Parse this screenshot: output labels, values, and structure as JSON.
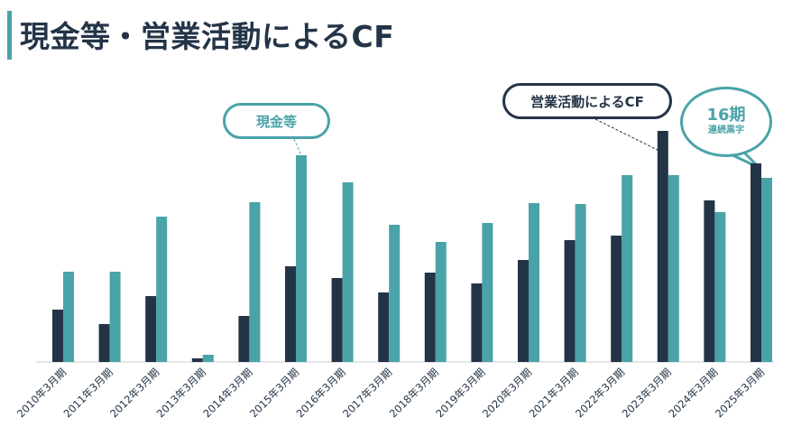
{
  "page": {
    "title": "現金等・営業活動によるCF"
  },
  "callouts": {
    "cash": "現金等",
    "cf": "営業活動によるCF",
    "badge_main": "16期",
    "badge_sub": "連続黒字"
  },
  "colors": {
    "cf": "#243447",
    "cash": "#4aa3a8",
    "accent": "#4aa3a8"
  },
  "chart_data": {
    "type": "bar",
    "categories": [
      "2010年3月期",
      "2011年3月期",
      "2012年3月期",
      "2013年3月期",
      "2014年3月期",
      "2015年3月期",
      "2016年3月期",
      "2017年3月期",
      "2018年3月期",
      "2019年3月期",
      "2020年3月期",
      "2021年3月期",
      "2022年3月期",
      "2023年3月期",
      "2024年3月期",
      "2025年3月期"
    ],
    "series": [
      {
        "name": "営業活動によるCF",
        "color": "#243447",
        "values": [
          58,
          42,
          73,
          4,
          51,
          106,
          93,
          77,
          99,
          87,
          113,
          135,
          140,
          256,
          179,
          220
        ]
      },
      {
        "name": "現金等",
        "color": "#4aa3a8",
        "values": [
          100,
          100,
          161,
          8,
          177,
          229,
          199,
          152,
          133,
          154,
          176,
          175,
          207,
          207,
          166,
          204
        ]
      }
    ],
    "ylim": [
      0,
      260
    ],
    "grid": false,
    "legend": "callouts"
  }
}
